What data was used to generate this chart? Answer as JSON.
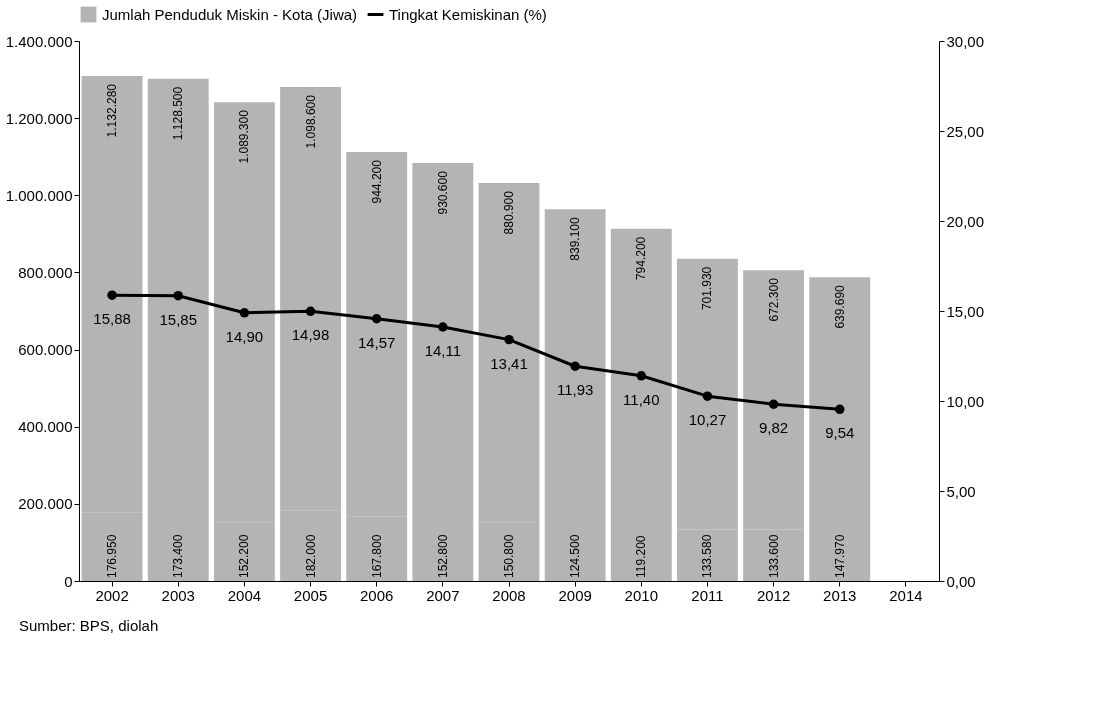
{
  "chart_data": {
    "type": "bar",
    "stacked": true,
    "legend": "top",
    "grid": false,
    "marker": "circle",
    "categories": [
      "2002",
      "2003",
      "2004",
      "2005",
      "2006",
      "2007",
      "2008",
      "2009",
      "2010",
      "2011",
      "2012",
      "2013",
      "2014"
    ],
    "series": [
      {
        "color": "#b4b4b4",
        "values": [
          176950,
          173400,
          152200,
          182000,
          167800,
          152800,
          150800,
          124500,
          119200,
          133580,
          133600,
          147970,
          null
        ],
        "value_labels": [
          "176.950",
          "173.400",
          "152.200",
          "182.000",
          "167.800",
          "152.800",
          "150.800",
          "124.500",
          "119.200",
          "133.580",
          "133.600",
          "147.970",
          null
        ]
      },
      {
        "name": "Jumlah Penduduk Miskin - Kota (Jiwa)",
        "color": "#b4b4b4",
        "values": [
          1132280,
          1128500,
          1089300,
          1098600,
          944200,
          930600,
          880900,
          839100,
          794200,
          701930,
          672300,
          639690,
          null
        ],
        "value_labels": [
          "1.132.280",
          "1.128.500",
          "1.089.300",
          "1.098.600",
          "944.200",
          "930.600",
          "880.900",
          "839.100",
          "794.200",
          "701.930",
          "672.300",
          "639.690",
          null
        ]
      },
      {
        "name": "Tingkat Kemiskinan (%)",
        "type": "line",
        "axis": "y2",
        "color": "#000000",
        "values": [
          15.88,
          15.85,
          14.9,
          14.98,
          14.57,
          14.11,
          13.41,
          11.93,
          11.4,
          10.27,
          9.82,
          9.54,
          null
        ],
        "value_labels": [
          "15,88",
          "15,85",
          "14,90",
          "14,98",
          "14,57",
          "14,11",
          "13,41",
          "11,93",
          "11,40",
          "10,27",
          "9,82",
          "9,54",
          null
        ]
      }
    ],
    "ylim": [
      0,
      1400000
    ],
    "yticks": [
      {
        "value": 0,
        "label": "0"
      },
      {
        "value": 200000,
        "label": "200.000"
      },
      {
        "value": 400000,
        "label": "400.000"
      },
      {
        "value": 600000,
        "label": "600.000"
      },
      {
        "value": 800000,
        "label": "800.000"
      },
      {
        "value": 1000000,
        "label": "1.000.000"
      },
      {
        "value": 1200000,
        "label": "1.200.000"
      },
      {
        "value": 1400000,
        "label": "1.400.000"
      }
    ],
    "y2lim": [
      0,
      30
    ],
    "y2ticks": [
      {
        "value": 0,
        "label": "0,00"
      },
      {
        "value": 5,
        "label": "5,00"
      },
      {
        "value": 10,
        "label": "10,00"
      },
      {
        "value": 15,
        "label": "15,00"
      },
      {
        "value": 20,
        "label": "20,00"
      },
      {
        "value": 25,
        "label": "25,00"
      },
      {
        "value": 30,
        "label": "30,00"
      }
    ],
    "annotations": [
      "Sumber: BPS, diolah"
    ]
  }
}
